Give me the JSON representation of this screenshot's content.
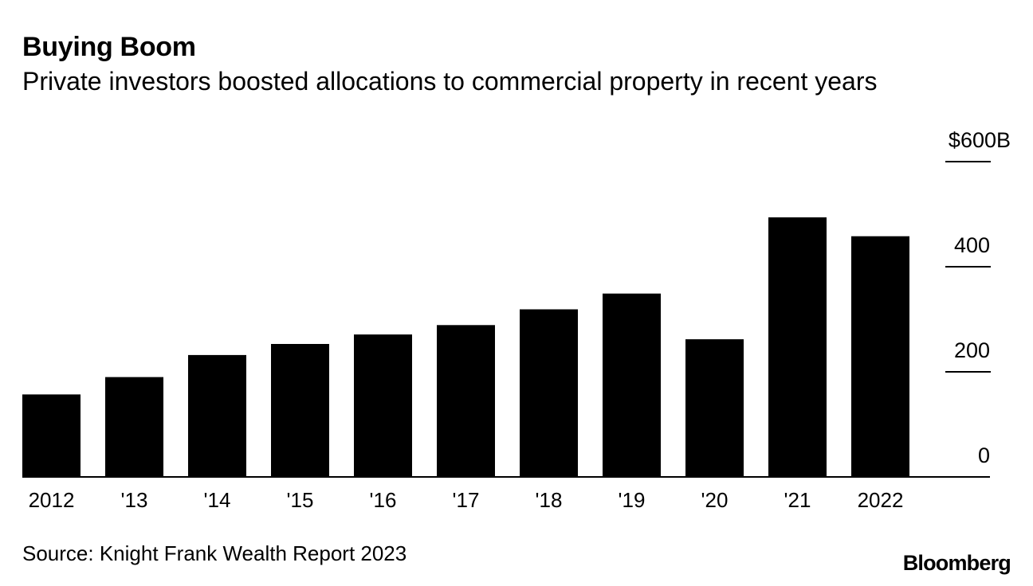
{
  "title": "Buying Boom",
  "subtitle": "Private investors boosted allocations to commercial property in recent years",
  "source": "Source: Knight Frank Wealth Report 2023",
  "brand": "Bloomberg",
  "colors": {
    "bar": "#000000",
    "background": "#ffffff",
    "text": "#000000"
  },
  "chart_data": {
    "type": "bar",
    "title": "Buying Boom",
    "xlabel": "",
    "ylabel": "",
    "categories": [
      "2012",
      "'13",
      "'14",
      "'15",
      "'16",
      "'17",
      "'18",
      "'19",
      "'20",
      "'21",
      "2022"
    ],
    "values": [
      157,
      190,
      232,
      253,
      271,
      289,
      319,
      349,
      262,
      494,
      458
    ],
    "ylim": [
      0,
      600
    ],
    "yticks": [
      0,
      200,
      400,
      600
    ],
    "ytick_labels": [
      "0",
      "200",
      "400",
      "$600B"
    ],
    "grid": false,
    "axis_position": "right"
  }
}
